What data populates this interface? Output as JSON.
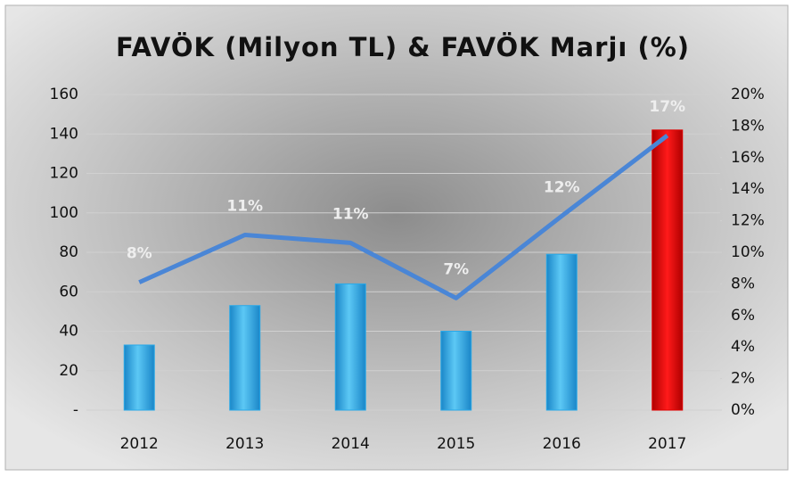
{
  "chart_data": {
    "type": "bar-line",
    "title": "FAVÖK (Milyon TL) & FAVÖK Marjı (%)",
    "categories": [
      "2012",
      "2013",
      "2014",
      "2015",
      "2016",
      "2017"
    ],
    "series": [
      {
        "type": "bar",
        "colors": [
          "#29a9e8",
          "#29a9e8",
          "#29a9e8",
          "#29a9e8",
          "#29a9e8",
          "#e00000"
        ],
        "values": [
          33,
          53,
          64,
          40,
          79,
          142
        ]
      },
      {
        "type": "line",
        "axis": "y2",
        "color": "#4a86d6",
        "values": [
          8.1,
          11.1,
          10.6,
          7.1,
          12.3,
          17.4
        ],
        "value_labels": [
          "8%",
          "11%",
          "11%",
          "7%",
          "12%",
          "17%"
        ]
      }
    ],
    "ylim": [
      0,
      160
    ],
    "yticks": [
      {
        "value": 0,
        "label": "-"
      },
      20,
      40,
      60,
      80,
      100,
      120,
      140,
      160
    ],
    "y2lim": [
      0,
      20
    ],
    "y2ticks": [
      {
        "value": 0,
        "label": "0%"
      },
      {
        "value": 2,
        "label": "2%"
      },
      {
        "value": 4,
        "label": "4%"
      },
      {
        "value": 6,
        "label": "6%"
      },
      {
        "value": 8,
        "label": "8%"
      },
      {
        "value": 10,
        "label": "10%"
      },
      {
        "value": 12,
        "label": "12%"
      },
      {
        "value": 14,
        "label": "14%"
      },
      {
        "value": 16,
        "label": "16%"
      },
      {
        "value": 18,
        "label": "18%"
      },
      {
        "value": 20,
        "label": "20%"
      }
    ],
    "grid": true
  }
}
